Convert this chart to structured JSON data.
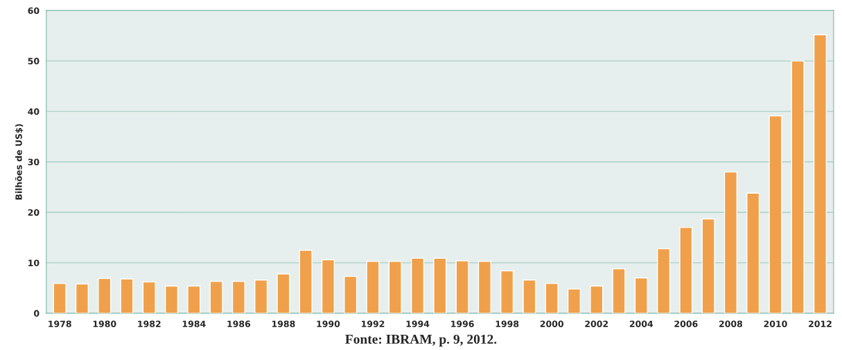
{
  "chart_data": {
    "type": "bar",
    "ylabel": "Bilhões de US$)",
    "categories": [
      "1978",
      null,
      "1980",
      null,
      "1982",
      null,
      "1984",
      null,
      "1986",
      null,
      "1988",
      null,
      "1990",
      null,
      "1992",
      null,
      "1994",
      null,
      "1996",
      null,
      "1998",
      null,
      "2000",
      null,
      "2002",
      null,
      "2004",
      null,
      "2006",
      null,
      "2008",
      null,
      "2010",
      null,
      "2012"
    ],
    "values": [
      5.9,
      5.8,
      6.9,
      6.8,
      6.2,
      5.4,
      5.4,
      6.3,
      6.3,
      6.6,
      7.8,
      12.5,
      10.6,
      7.3,
      10.3,
      10.3,
      10.9,
      10.9,
      10.4,
      10.3,
      8.4,
      6.6,
      5.9,
      4.8,
      5.4,
      8.8,
      7.0,
      12.8,
      17.0,
      18.7,
      28.0,
      23.8,
      39.1,
      50.0,
      55.2
    ],
    "color": "#f0a04b",
    "ylim": [
      0,
      60
    ],
    "yticks": [
      0,
      10,
      20,
      30,
      40,
      50,
      60
    ],
    "grid": "y",
    "annotations": [
      "Fonte: IBRAM, p. 9, 2012."
    ]
  }
}
